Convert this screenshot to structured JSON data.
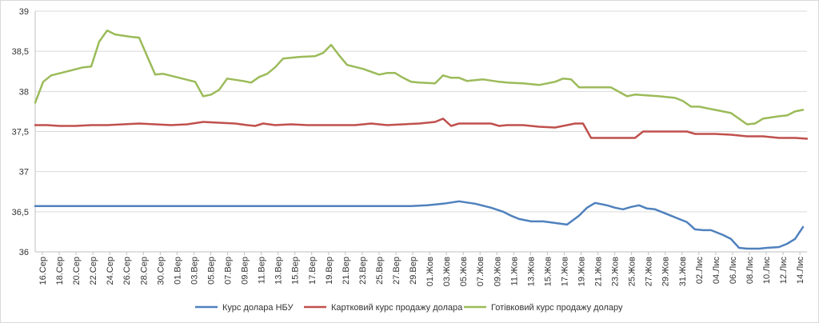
{
  "chart_data": {
    "type": "line",
    "title": "",
    "xlabel": "",
    "ylabel": "",
    "ylim": [
      36,
      39
    ],
    "yticks": [
      "36",
      "36,5",
      "37",
      "37,5",
      "38",
      "38,5",
      "39"
    ],
    "grid": "horizontal",
    "legend_position": "bottom",
    "x_tick_labels": [
      "16.Сер",
      "18.Сер",
      "20.Сер",
      "22.Сер",
      "24.Сер",
      "26.Сер",
      "28.Сер",
      "30.Сер",
      "01.Вер",
      "03.Вер",
      "05.Вер",
      "07.Вер",
      "09.Вер",
      "11.Вер",
      "13.Вер",
      "15.Вер",
      "17.Вер",
      "19.Вер",
      "21.Вер",
      "23.Вер",
      "25.Вер",
      "27.Вер",
      "29.Вер",
      "01.Жов",
      "03.Жов",
      "05.Жов",
      "07.Жов",
      "09.Жов",
      "11.Жов",
      "13.Жов",
      "15.Жов",
      "17.Жов",
      "19.Жов",
      "21.Жов",
      "23.Жов",
      "25.Жов",
      "27.Жов",
      "29.Жов",
      "31.Жов",
      "02.Лис",
      "04.Лис",
      "06.Лис",
      "08.Лис",
      "10.Лис",
      "12.Лис",
      "14.Лис"
    ],
    "series": [
      {
        "name": "Курс долара НБУ",
        "color": "#4f81bd",
        "points": [
          [
            0,
            36.57
          ],
          [
            8,
            36.57
          ],
          [
            16,
            36.57
          ],
          [
            24,
            36.57
          ],
          [
            32,
            36.57
          ],
          [
            40,
            36.57
          ],
          [
            48,
            36.57
          ],
          [
            56,
            36.57
          ],
          [
            64,
            36.57
          ],
          [
            72,
            36.57
          ],
          [
            80,
            36.57
          ],
          [
            88,
            36.57
          ],
          [
            94,
            36.57
          ],
          [
            98,
            36.58
          ],
          [
            102,
            36.6
          ],
          [
            106,
            36.63
          ],
          [
            110,
            36.6
          ],
          [
            114,
            36.55
          ],
          [
            117,
            36.5
          ],
          [
            119,
            36.45
          ],
          [
            121,
            36.41
          ],
          [
            124,
            36.38
          ],
          [
            127,
            36.38
          ],
          [
            130,
            36.36
          ],
          [
            133,
            36.34
          ],
          [
            136,
            36.45
          ],
          [
            138,
            36.55
          ],
          [
            140,
            36.61
          ],
          [
            143,
            36.58
          ],
          [
            145,
            36.55
          ],
          [
            147,
            36.53
          ],
          [
            149,
            36.56
          ],
          [
            151,
            36.58
          ],
          [
            153,
            36.54
          ],
          [
            155,
            36.53
          ],
          [
            159,
            36.45
          ],
          [
            161,
            36.41
          ],
          [
            163,
            36.37
          ],
          [
            165,
            36.28
          ],
          [
            167,
            36.27
          ],
          [
            169,
            36.27
          ],
          [
            172,
            36.21
          ],
          [
            174,
            36.16
          ],
          [
            176,
            36.05
          ],
          [
            178,
            36.04
          ],
          [
            181,
            36.04
          ],
          [
            183,
            36.05
          ],
          [
            186,
            36.06
          ],
          [
            188,
            36.1
          ],
          [
            190,
            36.16
          ],
          [
            192,
            36.31
          ]
        ]
      },
      {
        "name": "Картковий курс продажу долара",
        "color": "#c0504d",
        "points": [
          [
            0,
            37.58
          ],
          [
            3,
            37.58
          ],
          [
            6,
            37.57
          ],
          [
            10,
            37.57
          ],
          [
            14,
            37.58
          ],
          [
            18,
            37.58
          ],
          [
            22,
            37.59
          ],
          [
            26,
            37.6
          ],
          [
            30,
            37.59
          ],
          [
            34,
            37.58
          ],
          [
            38,
            37.59
          ],
          [
            42,
            37.62
          ],
          [
            46,
            37.61
          ],
          [
            50,
            37.6
          ],
          [
            53,
            37.58
          ],
          [
            55,
            37.57
          ],
          [
            57,
            37.6
          ],
          [
            60,
            37.58
          ],
          [
            64,
            37.59
          ],
          [
            68,
            37.58
          ],
          [
            72,
            37.58
          ],
          [
            76,
            37.58
          ],
          [
            80,
            37.58
          ],
          [
            84,
            37.6
          ],
          [
            88,
            37.58
          ],
          [
            92,
            37.59
          ],
          [
            96,
            37.6
          ],
          [
            100,
            37.62
          ],
          [
            102,
            37.66
          ],
          [
            104,
            37.57
          ],
          [
            106,
            37.6
          ],
          [
            110,
            37.6
          ],
          [
            114,
            37.6
          ],
          [
            116,
            37.57
          ],
          [
            118,
            37.58
          ],
          [
            122,
            37.58
          ],
          [
            126,
            37.56
          ],
          [
            130,
            37.55
          ],
          [
            133,
            37.58
          ],
          [
            135,
            37.6
          ],
          [
            137,
            37.6
          ],
          [
            139,
            37.42
          ],
          [
            143,
            37.42
          ],
          [
            147,
            37.42
          ],
          [
            150,
            37.42
          ],
          [
            152,
            37.5
          ],
          [
            156,
            37.5
          ],
          [
            160,
            37.5
          ],
          [
            163,
            37.5
          ],
          [
            165,
            37.47
          ],
          [
            170,
            37.47
          ],
          [
            174,
            37.46
          ],
          [
            178,
            37.44
          ],
          [
            182,
            37.44
          ],
          [
            186,
            37.42
          ],
          [
            190,
            37.42
          ],
          [
            193,
            37.41
          ]
        ]
      },
      {
        "name": "Готівковий курс продажу долару",
        "color": "#9bbb59",
        "points": [
          [
            0,
            37.86
          ],
          [
            2,
            38.12
          ],
          [
            4,
            38.2
          ],
          [
            8,
            38.25
          ],
          [
            12,
            38.3
          ],
          [
            14,
            38.31
          ],
          [
            16,
            38.62
          ],
          [
            18,
            38.76
          ],
          [
            20,
            38.71
          ],
          [
            24,
            38.68
          ],
          [
            26,
            38.67
          ],
          [
            28,
            38.44
          ],
          [
            30,
            38.21
          ],
          [
            32,
            38.22
          ],
          [
            36,
            38.17
          ],
          [
            40,
            38.12
          ],
          [
            42,
            37.94
          ],
          [
            44,
            37.96
          ],
          [
            46,
            38.02
          ],
          [
            48,
            38.16
          ],
          [
            52,
            38.13
          ],
          [
            54,
            38.11
          ],
          [
            56,
            38.18
          ],
          [
            58,
            38.22
          ],
          [
            60,
            38.3
          ],
          [
            62,
            38.41
          ],
          [
            66,
            38.43
          ],
          [
            70,
            38.44
          ],
          [
            72,
            38.48
          ],
          [
            74,
            38.58
          ],
          [
            76,
            38.45
          ],
          [
            78,
            38.33
          ],
          [
            82,
            38.28
          ],
          [
            86,
            38.21
          ],
          [
            88,
            38.23
          ],
          [
            90,
            38.23
          ],
          [
            92,
            38.17
          ],
          [
            94,
            38.12
          ],
          [
            96,
            38.11
          ],
          [
            100,
            38.1
          ],
          [
            102,
            38.2
          ],
          [
            104,
            38.17
          ],
          [
            106,
            38.17
          ],
          [
            108,
            38.13
          ],
          [
            112,
            38.15
          ],
          [
            116,
            38.12
          ],
          [
            118,
            38.11
          ],
          [
            122,
            38.1
          ],
          [
            126,
            38.08
          ],
          [
            130,
            38.12
          ],
          [
            132,
            38.16
          ],
          [
            134,
            38.15
          ],
          [
            136,
            38.05
          ],
          [
            140,
            38.05
          ],
          [
            144,
            38.05
          ],
          [
            148,
            37.94
          ],
          [
            150,
            37.96
          ],
          [
            156,
            37.94
          ],
          [
            160,
            37.92
          ],
          [
            162,
            37.88
          ],
          [
            164,
            37.81
          ],
          [
            166,
            37.81
          ],
          [
            170,
            37.77
          ],
          [
            174,
            37.73
          ],
          [
            178,
            37.59
          ],
          [
            180,
            37.6
          ],
          [
            182,
            37.66
          ],
          [
            186,
            37.69
          ],
          [
            188,
            37.7
          ],
          [
            190,
            37.75
          ],
          [
            192,
            37.77
          ]
        ]
      }
    ]
  }
}
